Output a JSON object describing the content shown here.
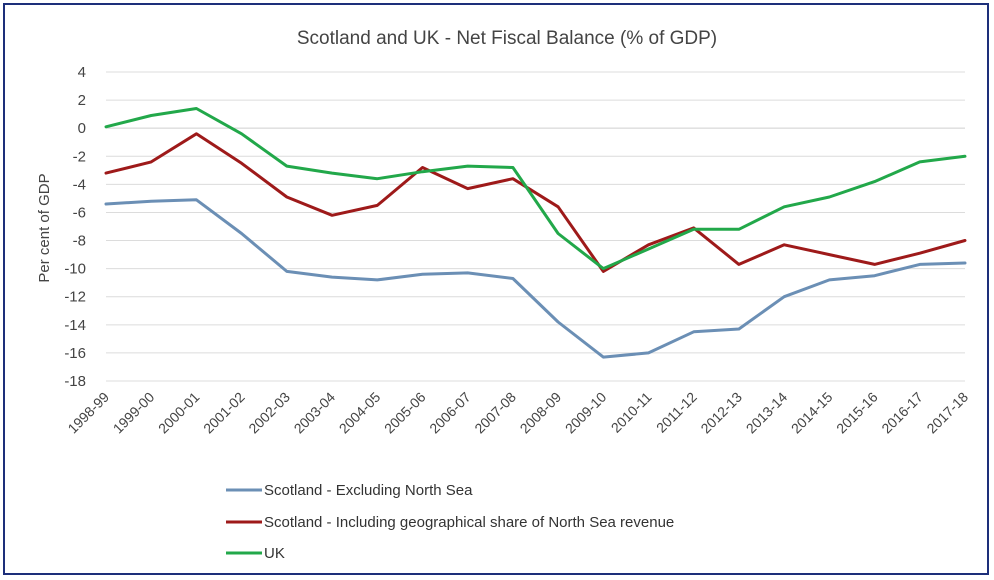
{
  "chart_data": {
    "type": "line",
    "title": "Scotland  and UK  - Net Fiscal Balance (% of GDP)",
    "xlabel": "",
    "ylabel": "Per cent of GDP",
    "ylim": [
      -18,
      4
    ],
    "yticks": [
      4,
      2,
      0,
      -2,
      -4,
      -6,
      -8,
      -10,
      -12,
      -14,
      -16,
      -18
    ],
    "grid": true,
    "legend_position": "bottom",
    "categories": [
      "1998-99",
      "1999-00",
      "2000-01",
      "2001-02",
      "2002-03",
      "2003-04",
      "2004-05",
      "2005-06",
      "2006-07",
      "2007-08",
      "2008-09",
      "2009-10",
      "2010-11",
      "2011-12",
      "2012-13",
      "2013-14",
      "2014-15",
      "2015-16",
      "2016-17",
      "2017-18"
    ],
    "series": [
      {
        "name": "Scotland - Excluding North Sea",
        "color": "#6b8fb5",
        "values": [
          -5.4,
          -5.2,
          -5.1,
          -7.5,
          -10.2,
          -10.6,
          -10.8,
          -10.4,
          -10.3,
          -10.7,
          -13.8,
          -16.3,
          -16.0,
          -14.5,
          -14.3,
          -12.0,
          -10.8,
          -10.5,
          -9.7,
          -9.6
        ]
      },
      {
        "name": "Scotland - Including geographical share of North Sea revenue",
        "color": "#9e1a1a",
        "values": [
          -3.2,
          -2.4,
          -0.4,
          -2.5,
          -4.9,
          -6.2,
          -5.5,
          -2.8,
          -4.3,
          -3.6,
          -5.6,
          -10.2,
          -8.3,
          -7.1,
          -9.7,
          -8.3,
          -9.0,
          -9.7,
          -8.9,
          -8.0
        ]
      },
      {
        "name": "UK",
        "color": "#22a84a",
        "values": [
          0.1,
          0.9,
          1.4,
          -0.4,
          -2.7,
          -3.2,
          -3.6,
          -3.1,
          -2.7,
          -2.8,
          -7.5,
          -10.0,
          -8.6,
          -7.2,
          -7.2,
          -5.6,
          -4.9,
          -3.8,
          -2.4,
          -2.0
        ]
      }
    ]
  }
}
